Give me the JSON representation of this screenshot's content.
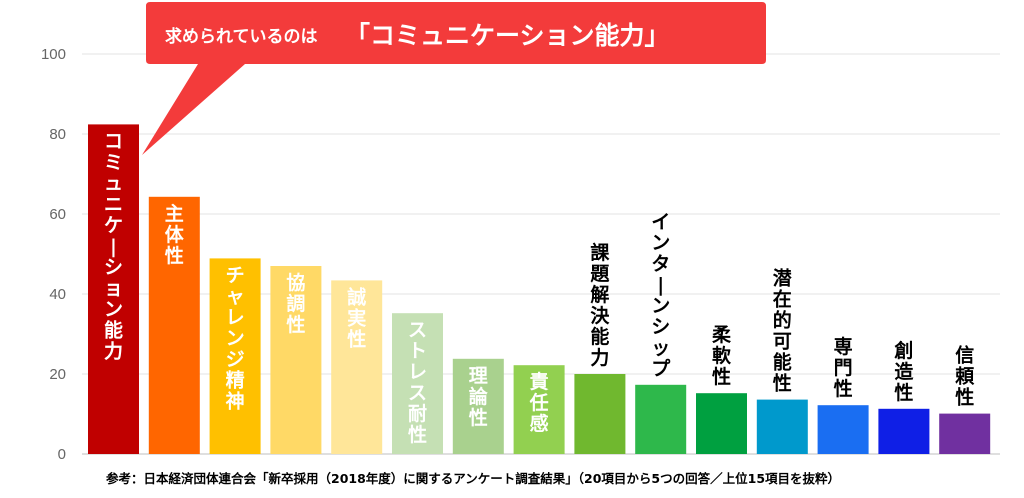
{
  "chart_data": {
    "type": "bar",
    "categories": [
      "コミュニケーション能力",
      "主体性",
      "チャレンジ精神",
      "協調性",
      "誠実性",
      "ストレス耐性",
      "理論性",
      "責任感",
      "課題解決能力",
      "インターンシップ",
      "柔軟性",
      "潜在的可能性",
      "専門性",
      "創造性",
      "信頼性"
    ],
    "values": [
      82.4,
      64.3,
      48.9,
      47.0,
      43.4,
      35.2,
      23.8,
      22.2,
      20.0,
      17.3,
      15.2,
      13.6,
      12.2,
      11.3,
      10.1
    ],
    "colors": [
      "#c00000",
      "#ff6600",
      "#ffc000",
      "#ffd966",
      "#ffe699",
      "#c5e0b4",
      "#a9d18e",
      "#92d050",
      "#70b82f",
      "#2eb84b",
      "#00a040",
      "#0099cc",
      "#1a6ef2",
      "#0f1fe6",
      "#7030a0"
    ],
    "label_colors": [
      "#ffffff",
      "#ffffff",
      "#ffffff",
      "#ffffff",
      "#ffffff",
      "#ffffff",
      "#ffffff",
      "#ffffff",
      "#000000",
      "#000000",
      "#000000",
      "#000000",
      "#000000",
      "#000000",
      "#000000"
    ],
    "label_inside": [
      true,
      true,
      true,
      true,
      true,
      true,
      true,
      true,
      false,
      false,
      false,
      false,
      false,
      false,
      false
    ],
    "yticks": [
      0,
      20,
      40,
      60,
      80,
      100
    ],
    "ylim": [
      0,
      100
    ],
    "grid": true,
    "xlabel": "",
    "ylabel": ""
  },
  "callout": {
    "prefix": "求められているのは",
    "highlight": "「コミュニケーション能力」",
    "color": "#f33b3b"
  },
  "source_note": "参考：日本経済団体連合会「新卒採用（2018年度）に関するアンケート調査結果」（20項目から5つの回答／上位15項目を抜粋）"
}
